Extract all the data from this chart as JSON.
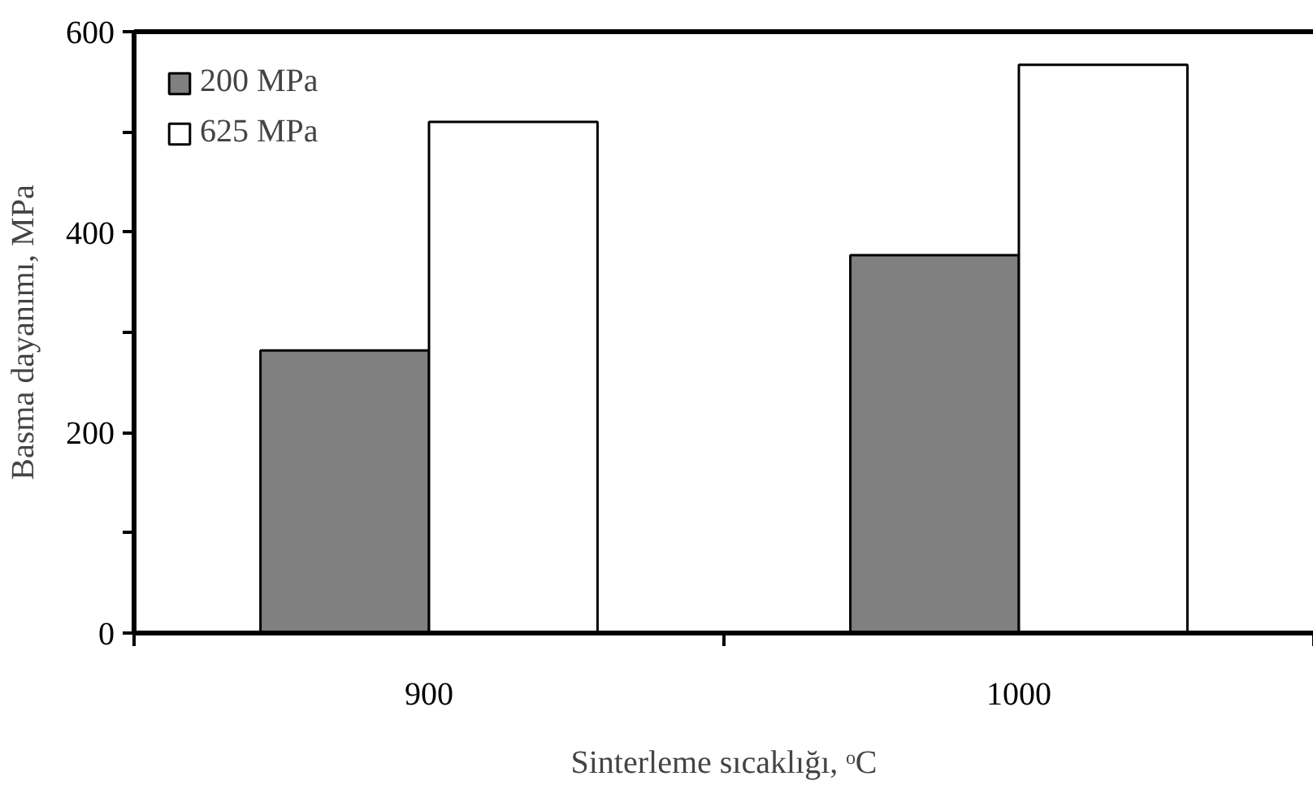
{
  "chart_data": {
    "type": "bar",
    "xlabel": "Sinterleme sıcaklığı, ᵒC",
    "ylabel": "Basma dayanımı, MPa",
    "categories": [
      "900",
      "1000"
    ],
    "series": [
      {
        "name": "200 MPa",
        "color": "#808080",
        "values": [
          282,
          377
        ]
      },
      {
        "name": "625 MPa",
        "color": "#ffffff",
        "values": [
          510,
          567
        ]
      }
    ],
    "ylim": [
      0,
      600
    ],
    "yticks": [
      0,
      {
        "value": 100,
        "label": null
      },
      200,
      {
        "value": 300,
        "label": null
      },
      400,
      {
        "value": 500,
        "label": null
      },
      600
    ],
    "grid": false,
    "legend": "top left"
  }
}
